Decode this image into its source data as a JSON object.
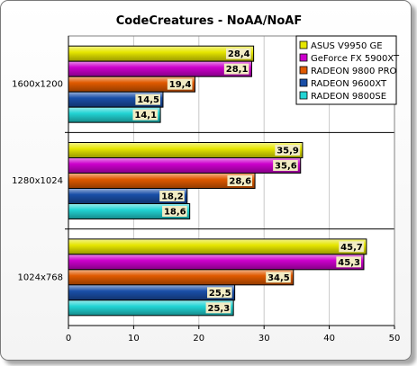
{
  "chart_data": {
    "type": "bar",
    "orientation": "horizontal",
    "title": "CodeCreatures - NoAA/NoAF",
    "categories": [
      "1600x1200",
      "1280x1024",
      "1024x768"
    ],
    "series": [
      {
        "name": "ASUS V9950 GE",
        "color": "#e6e600",
        "values": [
          28.4,
          35.9,
          45.7
        ],
        "labels": [
          "28,4",
          "35,9",
          "45,7"
        ]
      },
      {
        "name": "GeForce FX 5900XT",
        "color": "#cc00cc",
        "values": [
          28.1,
          35.6,
          45.3
        ],
        "labels": [
          "28,1",
          "35,6",
          "45,3"
        ]
      },
      {
        "name": "RADEON 9800 PRO",
        "color": "#e05a00",
        "values": [
          19.4,
          28.6,
          34.5
        ],
        "labels": [
          "19,4",
          "28,6",
          "34,5"
        ]
      },
      {
        "name": "RADEON 9600XT",
        "color": "#1a4fa8",
        "values": [
          14.5,
          18.2,
          25.5
        ],
        "labels": [
          "14,5",
          "18,2",
          "25,5"
        ]
      },
      {
        "name": "RADEON 9800SE",
        "color": "#22d4d4",
        "values": [
          14.1,
          18.6,
          25.3
        ],
        "labels": [
          "14,1",
          "18,6",
          "25,3"
        ]
      }
    ],
    "xlim": [
      0,
      50
    ],
    "xticks": [
      0,
      10,
      20,
      30,
      40,
      50
    ],
    "grid": true,
    "legend_position": "top-right"
  }
}
